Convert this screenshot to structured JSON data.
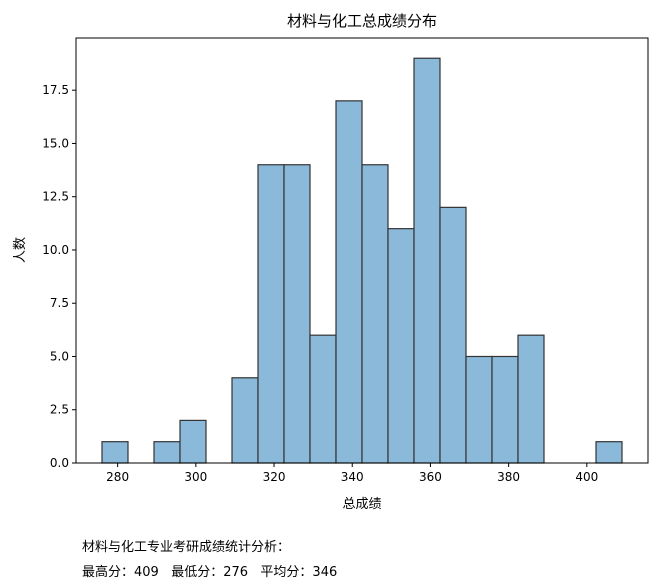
{
  "chart_data": {
    "type": "bar",
    "subtype": "histogram",
    "title": "材料与化工总成绩分布",
    "xlabel": "总成绩",
    "ylabel": "人数",
    "bin_start": 276,
    "bin_width": 6.65,
    "counts": [
      1,
      0,
      1,
      2,
      0,
      4,
      14,
      14,
      6,
      17,
      14,
      11,
      19,
      12,
      5,
      5,
      6,
      0,
      0,
      1
    ],
    "xlim": [
      269.35,
      415.65
    ],
    "ylim": [
      0,
      19.95
    ],
    "xticks": [
      280,
      300,
      320,
      340,
      360,
      380,
      400
    ],
    "yticks": [
      "0.0",
      "2.5",
      "5.0",
      "7.5",
      "10.0",
      "12.5",
      "15.0",
      "17.5"
    ],
    "bar_color": "#8ab9da",
    "edge_color": "#333333",
    "grid": false
  },
  "summary": {
    "heading": "材料与化工专业考研成绩统计分析：",
    "stats": "最高分：409   最低分：276   平均分：346"
  }
}
